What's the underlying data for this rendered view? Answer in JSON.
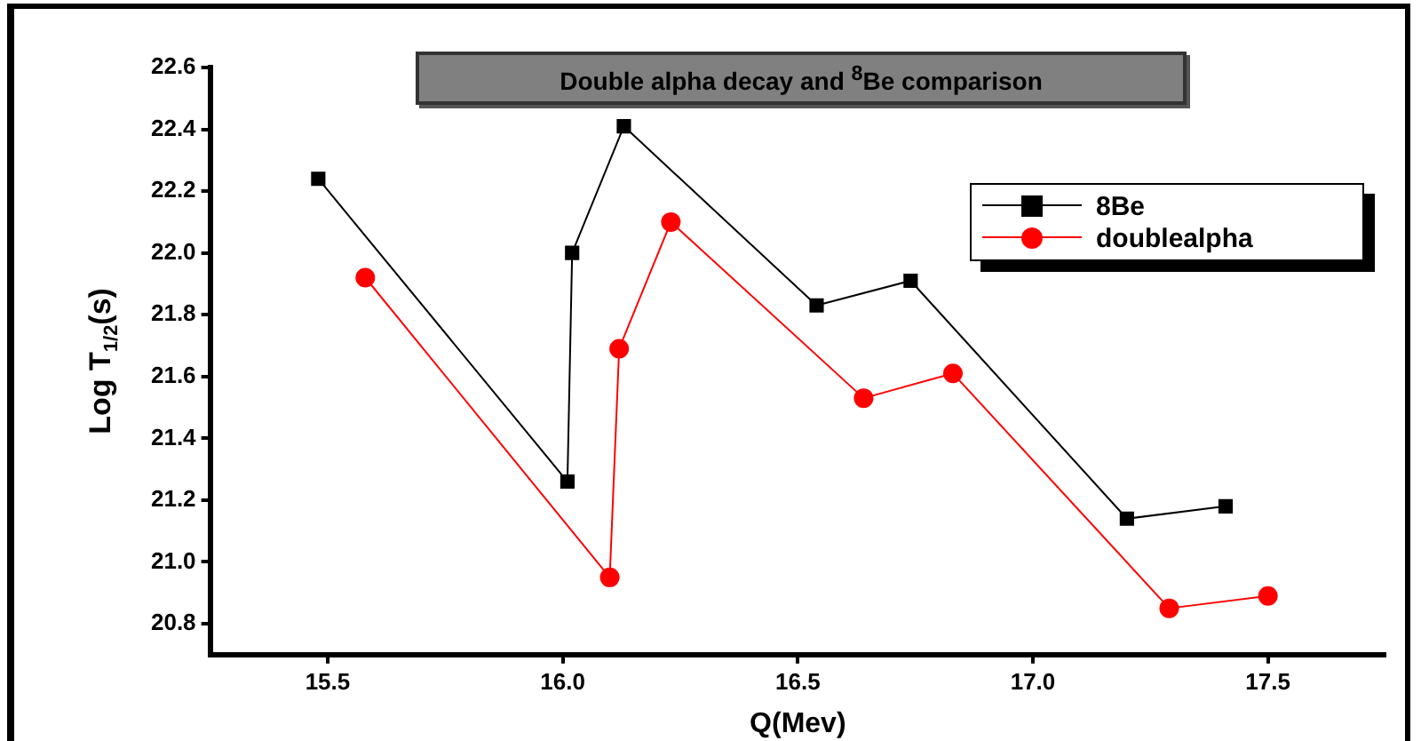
{
  "chart_data": {
    "type": "line",
    "title": "Double alpha decay and $^{8}$Be comparison",
    "xlabel": "Q(Mev)",
    "ylabel": "Log T$_{1/2}$(s)",
    "xlim": [
      15.25,
      17.75
    ],
    "xticks": [
      15.5,
      {
        "value": 16,
        "label": "16.0"
      },
      16.5,
      {
        "value": 17,
        "label": "17.0"
      },
      17.5
    ],
    "ylim": [
      20.7,
      22.6
    ],
    "yticks": [
      20.8,
      {
        "value": 21,
        "label": "21.0"
      },
      21.2,
      21.4,
      21.6,
      21.8,
      {
        "value": 22,
        "label": "22.0"
      },
      22.2,
      22.4,
      22.6
    ],
    "grid": false,
    "legend": "top right",
    "series": [
      {
        "name": "8Be",
        "color": "#000000",
        "marker": "square",
        "x": [
          15.48,
          16.01,
          16.02,
          16.13,
          16.54,
          16.74,
          17.2,
          17.41
        ],
        "values": [
          22.24,
          21.26,
          22.0,
          22.41,
          21.83,
          21.91,
          21.14,
          21.18
        ]
      },
      {
        "name": "doublealpha",
        "color": "#ff0000",
        "marker": "circle",
        "x": [
          15.58,
          16.1,
          16.12,
          16.23,
          16.64,
          16.83,
          17.29,
          17.5
        ],
        "values": [
          21.92,
          20.95,
          21.69,
          22.1,
          21.53,
          21.61,
          20.85,
          20.89
        ]
      }
    ]
  }
}
